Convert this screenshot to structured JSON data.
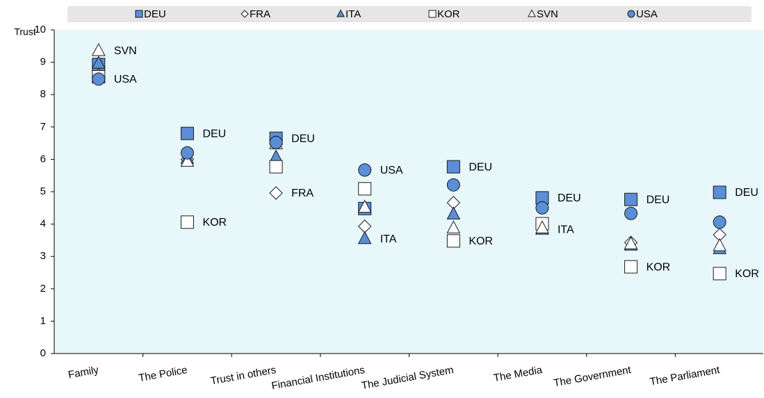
{
  "chart_data": {
    "type": "dot",
    "y_label": "Trust",
    "categories": [
      "Family",
      "The Police",
      "Trust in others",
      "Financial Institutions",
      "The Judicial System",
      "The Media",
      "The Government",
      "The Parliament"
    ],
    "ylim": [
      0,
      10
    ],
    "yticks": [
      0,
      1,
      2,
      3,
      4,
      5,
      6,
      7,
      8,
      9,
      10
    ],
    "background": "#e8f7fa",
    "series": [
      {
        "name": "DEU",
        "marker": "square",
        "color": "#5b8ed6",
        "values": [
          8.93,
          6.8,
          6.65,
          4.48,
          5.77,
          4.81,
          4.76,
          4.98
        ]
      },
      {
        "name": "FRA",
        "marker": "diamond",
        "color": "#ffffff",
        "values": [
          8.6,
          6.0,
          4.96,
          3.93,
          4.66,
          3.95,
          3.43,
          3.67
        ]
      },
      {
        "name": "ITA",
        "marker": "triangle",
        "color": "#5b8ed6",
        "values": [
          8.97,
          6.03,
          6.07,
          3.55,
          4.31,
          3.84,
          3.35,
          3.24
        ]
      },
      {
        "name": "KOR",
        "marker": "square",
        "color": "#ffffff",
        "values": [
          8.55,
          4.06,
          5.77,
          5.09,
          3.48,
          4.01,
          2.68,
          2.47
        ]
      },
      {
        "name": "SVN",
        "marker": "triangle",
        "color": "#ffffff",
        "values": [
          9.36,
          5.94,
          6.48,
          4.52,
          3.88,
          3.88,
          3.39,
          3.33
        ]
      },
      {
        "name": "USA",
        "marker": "circle",
        "color": "#5b8ed6",
        "values": [
          8.48,
          6.2,
          6.52,
          5.67,
          5.21,
          4.5,
          4.33,
          4.06
        ]
      }
    ],
    "annotations": [
      {
        "label": "SVN",
        "category": "Family"
      },
      {
        "label": "USA",
        "category": "Family"
      },
      {
        "label": "DEU",
        "category": "The Police"
      },
      {
        "label": "KOR",
        "category": "The Police"
      },
      {
        "label": "DEU",
        "category": "Trust in others"
      },
      {
        "label": "FRA",
        "category": "Trust in others"
      },
      {
        "label": "USA",
        "category": "Financial Institutions"
      },
      {
        "label": "ITA",
        "category": "Financial Institutions"
      },
      {
        "label": "DEU",
        "category": "The Judicial System"
      },
      {
        "label": "KOR",
        "category": "The Judicial System"
      },
      {
        "label": "DEU",
        "category": "The Media"
      },
      {
        "label": "ITA",
        "category": "The Media"
      },
      {
        "label": "DEU",
        "category": "The Government"
      },
      {
        "label": "KOR",
        "category": "The Government"
      },
      {
        "label": "DEU",
        "category": "The Parliament"
      },
      {
        "label": "KOR",
        "category": "The Parliament"
      }
    ]
  }
}
